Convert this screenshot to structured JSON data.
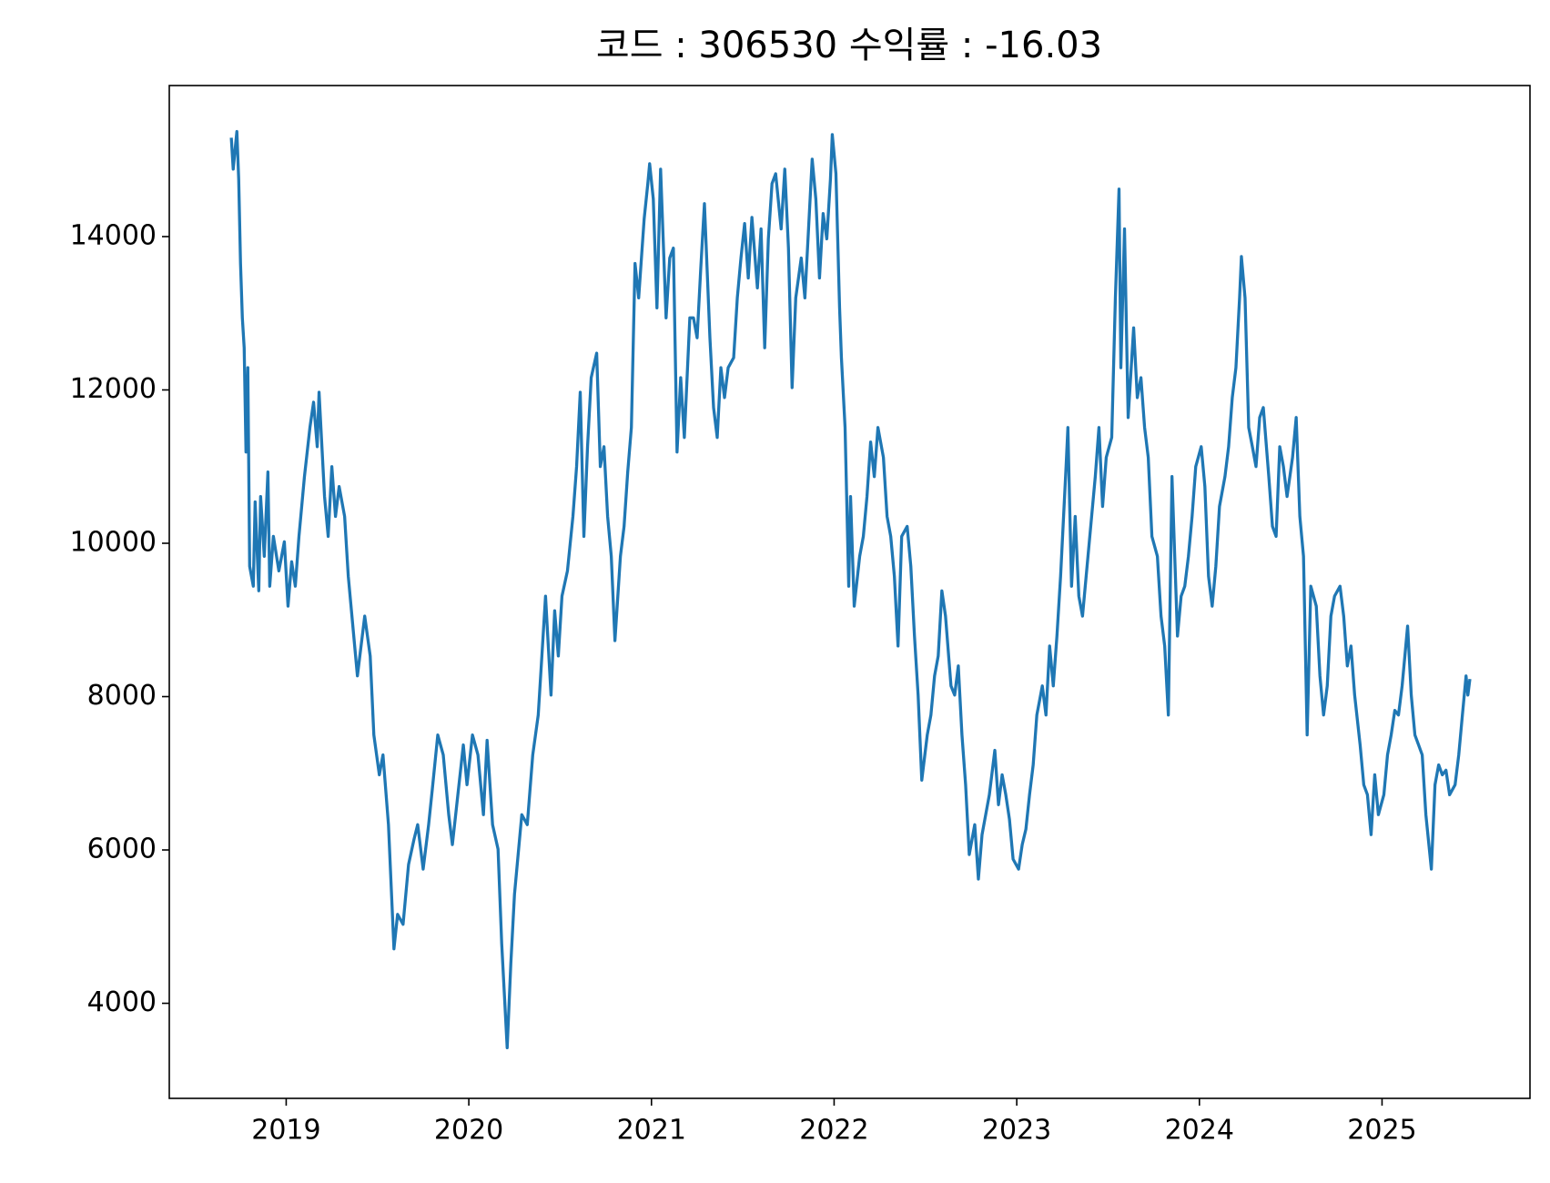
{
  "chart_data": {
    "type": "line",
    "title": "코드 : 306530 수익률 : -16.03",
    "color": "#1f77b4",
    "xlim": [
      2018.36,
      2025.81
    ],
    "xticks": [
      2019,
      2020,
      2021,
      2022,
      2023,
      2024,
      2025
    ],
    "ylim": [
      2760,
      15970
    ],
    "yticks": [
      4000,
      6000,
      8000,
      10000,
      12000,
      14000
    ],
    "x": [
      2018.7,
      2018.71,
      2018.73,
      2018.74,
      2018.75,
      2018.76,
      2018.77,
      2018.78,
      2018.79,
      2018.8,
      2018.82,
      2018.83,
      2018.85,
      2018.86,
      2018.88,
      2018.9,
      2018.91,
      2018.93,
      2018.96,
      2018.99,
      2019.01,
      2019.03,
      2019.05,
      2019.07,
      2019.1,
      2019.13,
      2019.15,
      2019.17,
      2019.18,
      2019.21,
      2019.23,
      2019.25,
      2019.27,
      2019.29,
      2019.32,
      2019.34,
      2019.37,
      2019.39,
      2019.41,
      2019.43,
      2019.46,
      2019.48,
      2019.51,
      2019.53,
      2019.56,
      2019.59,
      2019.61,
      2019.64,
      2019.67,
      2019.7,
      2019.72,
      2019.75,
      2019.78,
      2019.8,
      2019.83,
      2019.86,
      2019.89,
      2019.91,
      2019.94,
      2019.97,
      2019.99,
      2020.02,
      2020.05,
      2020.08,
      2020.1,
      2020.13,
      2020.16,
      2020.18,
      2020.21,
      2020.23,
      2020.25,
      2020.27,
      2020.29,
      2020.32,
      2020.35,
      2020.38,
      2020.4,
      2020.42,
      2020.45,
      2020.47,
      2020.49,
      2020.51,
      2020.54,
      2020.57,
      2020.59,
      2020.61,
      2020.63,
      2020.65,
      2020.67,
      2020.7,
      2020.72,
      2020.74,
      2020.76,
      2020.78,
      2020.8,
      2020.83,
      2020.85,
      2020.87,
      2020.89,
      2020.91,
      2020.93,
      2020.96,
      2020.98,
      2020.99,
      2021.01,
      2021.03,
      2021.05,
      2021.08,
      2021.1,
      2021.12,
      2021.14,
      2021.16,
      2021.18,
      2021.21,
      2021.23,
      2021.25,
      2021.27,
      2021.29,
      2021.32,
      2021.34,
      2021.36,
      2021.38,
      2021.4,
      2021.42,
      2021.45,
      2021.47,
      2021.49,
      2021.51,
      2021.53,
      2021.55,
      2021.58,
      2021.6,
      2021.62,
      2021.64,
      2021.66,
      2021.68,
      2021.71,
      2021.73,
      2021.75,
      2021.77,
      2021.79,
      2021.82,
      2021.84,
      2021.86,
      2021.88,
      2021.9,
      2021.92,
      2021.94,
      2021.96,
      2021.98,
      2021.99,
      2022.01,
      2022.03,
      2022.04,
      2022.06,
      2022.08,
      2022.09,
      2022.11,
      2022.14,
      2022.16,
      2022.18,
      2022.2,
      2022.22,
      2022.24,
      2022.27,
      2022.29,
      2022.31,
      2022.33,
      2022.35,
      2022.37,
      2022.4,
      2022.42,
      2022.44,
      2022.46,
      2022.48,
      2022.51,
      2022.53,
      2022.55,
      2022.57,
      2022.59,
      2022.61,
      2022.64,
      2022.66,
      2022.68,
      2022.7,
      2022.72,
      2022.74,
      2022.77,
      2022.79,
      2022.81,
      2022.83,
      2022.85,
      2022.88,
      2022.9,
      2022.92,
      2022.94,
      2022.96,
      2022.98,
      2023.01,
      2023.03,
      2023.05,
      2023.07,
      2023.09,
      2023.11,
      2023.14,
      2023.16,
      2023.18,
      2023.2,
      2023.22,
      2023.24,
      2023.27,
      2023.28,
      2023.3,
      2023.32,
      2023.34,
      2023.36,
      2023.39,
      2023.41,
      2023.43,
      2023.45,
      2023.47,
      2023.49,
      2023.52,
      2023.54,
      2023.56,
      2023.57,
      2023.59,
      2023.61,
      2023.64,
      2023.66,
      2023.68,
      2023.7,
      2023.72,
      2023.74,
      2023.77,
      2023.79,
      2023.81,
      2023.83,
      2023.85,
      2023.88,
      2023.9,
      2023.92,
      2023.94,
      2023.96,
      2023.98,
      2024.01,
      2024.03,
      2024.05,
      2024.07,
      2024.09,
      2024.11,
      2024.14,
      2024.16,
      2024.18,
      2024.2,
      2024.22,
      2024.23,
      2024.25,
      2024.27,
      2024.29,
      2024.31,
      2024.33,
      2024.35,
      2024.38,
      2024.4,
      2024.42,
      2024.44,
      2024.46,
      2024.48,
      2024.51,
      2024.53,
      2024.55,
      2024.57,
      2024.59,
      2024.61,
      2024.64,
      2024.66,
      2024.68,
      2024.7,
      2024.72,
      2024.74,
      2024.77,
      2024.79,
      2024.81,
      2024.83,
      2024.85,
      2024.88,
      2024.9,
      2024.92,
      2024.94,
      2024.96,
      2024.98,
      2025.01,
      2025.03,
      2025.05,
      2025.07,
      2025.09,
      2025.11,
      2025.14,
      2025.16,
      2025.18,
      2025.2,
      2025.22,
      2025.24,
      2025.27,
      2025.29,
      2025.31,
      2025.33,
      2025.35,
      2025.37,
      2025.4,
      2025.42,
      2025.44,
      2025.46,
      2025.47,
      2025.48
    ],
    "values": [
      15270,
      14880,
      15370,
      14750,
      13650,
      12940,
      12550,
      11190,
      12290,
      9700,
      9440,
      10540,
      9380,
      10610,
      9830,
      10930,
      9440,
      10090,
      9640,
      10020,
      9180,
      9760,
      9440,
      10090,
      10870,
      11510,
      11840,
      11260,
      11970,
      10610,
      10090,
      11000,
      10350,
      10740,
      10350,
      9570,
      8790,
      8270,
      8660,
      9050,
      8530,
      7500,
      6980,
      7240,
      6330,
      4710,
      5160,
      5030,
      5810,
      6140,
      6330,
      5750,
      6330,
      6790,
      7500,
      7240,
      6460,
      6070,
      6720,
      7370,
      6850,
      7500,
      7240,
      6460,
      7430,
      6330,
      6010,
      4780,
      3420,
      4520,
      5420,
      5940,
      6460,
      6330,
      7240,
      7760,
      8530,
      9310,
      8020,
      9120,
      8530,
      9310,
      9640,
      10350,
      11000,
      11970,
      10090,
      11260,
      12160,
      12480,
      11000,
      11260,
      10350,
      9830,
      8730,
      9830,
      10220,
      10930,
      11510,
      13650,
      13200,
      14230,
      14690,
      14950,
      14490,
      13070,
      14880,
      12940,
      13720,
      13850,
      11190,
      12160,
      11380,
      12940,
      12940,
      12680,
      13590,
      14430,
      12680,
      11770,
      11380,
      12290,
      11900,
      12290,
      12420,
      13200,
      13720,
      14170,
      13460,
      14250,
      13330,
      14100,
      12550,
      13970,
      14690,
      14820,
      14100,
      14880,
      13850,
      12030,
      13200,
      13720,
      13200,
      14100,
      15010,
      14490,
      13460,
      14300,
      13970,
      14750,
      15330,
      14820,
      13070,
      12420,
      11510,
      9440,
      10610,
      9180,
      9830,
      10090,
      10610,
      11320,
      10870,
      11510,
      11120,
      10350,
      10090,
      9570,
      8660,
      10090,
      10220,
      9700,
      8790,
      8020,
      6910,
      7500,
      7760,
      8270,
      8530,
      9380,
      9050,
      8140,
      8020,
      8400,
      7500,
      6850,
      5940,
      6330,
      5620,
      6200,
      6460,
      6720,
      7300,
      6590,
      6980,
      6720,
      6400,
      5880,
      5750,
      6070,
      6270,
      6720,
      7110,
      7760,
      8140,
      7760,
      8660,
      8140,
      8790,
      9570,
      11000,
      11510,
      9440,
      10350,
      9310,
      9050,
      9830,
      10350,
      10870,
      11510,
      10480,
      11120,
      11380,
      13200,
      14620,
      12290,
      14100,
      11640,
      12810,
      11900,
      12160,
      11510,
      11120,
      10090,
      9830,
      9050,
      8660,
      7760,
      10870,
      8790,
      9310,
      9440,
      9830,
      10350,
      11000,
      11260,
      10740,
      9570,
      9180,
      9700,
      10480,
      10870,
      11260,
      11900,
      12290,
      13200,
      13740,
      13200,
      11510,
      11260,
      11000,
      11640,
      11770,
      10870,
      10220,
      10090,
      11260,
      11000,
      10610,
      11120,
      11640,
      10350,
      9830,
      7500,
      9440,
      9180,
      8270,
      7760,
      8140,
      9050,
      9310,
      9440,
      9050,
      8400,
      8660,
      8020,
      7370,
      6850,
      6720,
      6200,
      6980,
      6460,
      6720,
      7240,
      7500,
      7820,
      7760,
      8140,
      8920,
      8020,
      7500,
      7370,
      7240,
      6460,
      5750,
      6850,
      7110,
      6980,
      7040,
      6720,
      6850,
      7240,
      7760,
      8270,
      8020,
      8210
    ]
  }
}
